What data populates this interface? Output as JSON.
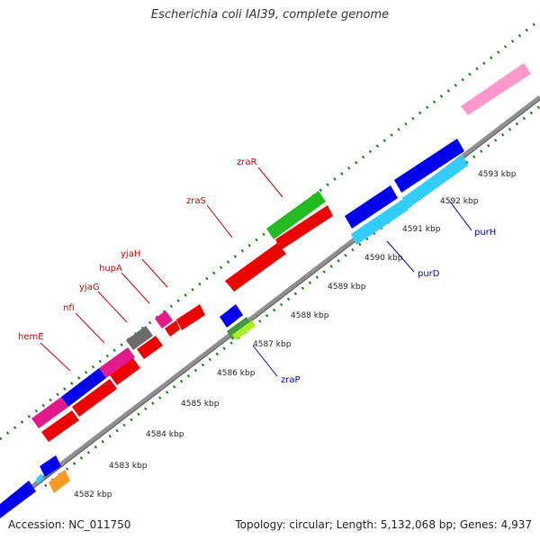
{
  "title": "Escherichia coli IAI39, complete genome",
  "footer": {
    "accession": "Accession: NC_011750",
    "summary": "Topology: circular; Length: 5,132,068 bp; Genes: 4,937"
  },
  "colors": {
    "backbone": "#8f8f8f",
    "tick": "#1f7a1f",
    "label_forward": "#cc0000",
    "label_reverse": "#0000aa"
  },
  "ticks": [
    "4582 kbp",
    "4583 kbp",
    "4584 kbp",
    "4585 kbp",
    "4586 kbp",
    "4587 kbp",
    "4588 kbp",
    "4589 kbp",
    "4590 kbp",
    "4591 kbp",
    "4592 kbp",
    "4593 kbp"
  ],
  "gene_labels": [
    {
      "name": "hemE",
      "strand": "forward"
    },
    {
      "name": "nfi",
      "strand": "forward"
    },
    {
      "name": "yjaG",
      "strand": "forward"
    },
    {
      "name": "hupA",
      "strand": "forward"
    },
    {
      "name": "yjaH",
      "strand": "forward"
    },
    {
      "name": "zraS",
      "strand": "forward"
    },
    {
      "name": "zraR",
      "strand": "forward"
    },
    {
      "name": "zraP",
      "strand": "reverse"
    },
    {
      "name": "purD",
      "strand": "reverse"
    },
    {
      "name": "purH",
      "strand": "reverse"
    }
  ]
}
